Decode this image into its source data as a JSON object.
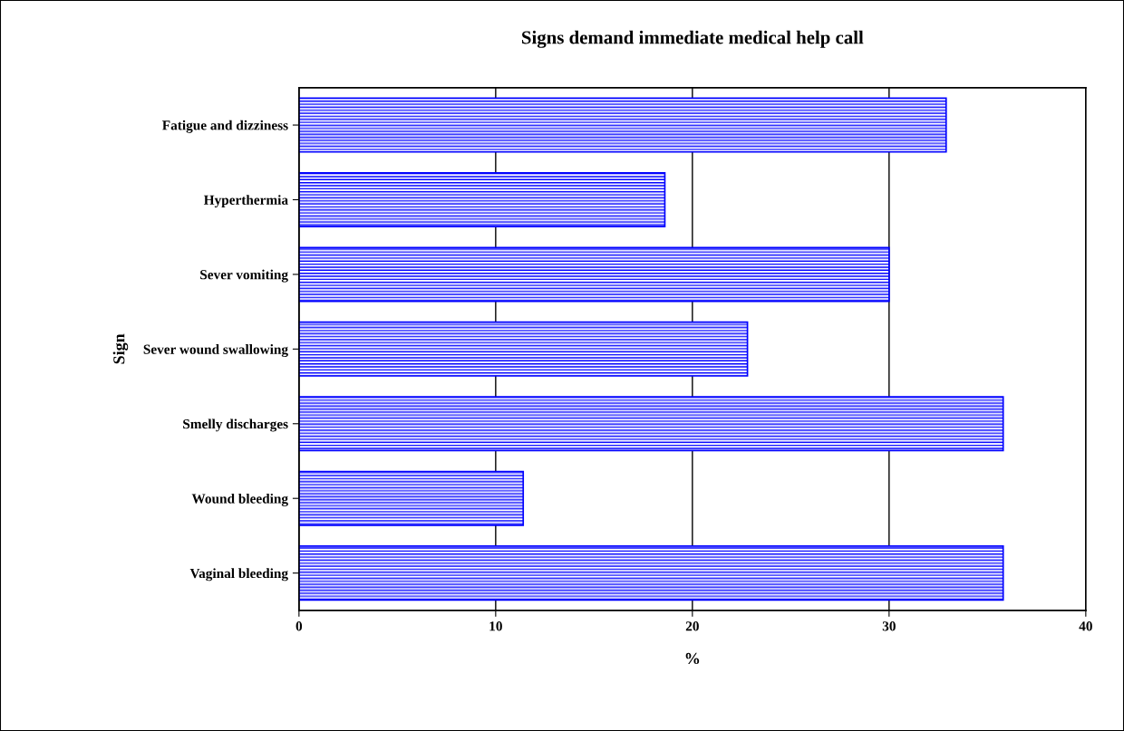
{
  "chart_data": {
    "type": "bar",
    "orientation": "horizontal",
    "title": "Signs demand immediate medical help call",
    "xlabel": "%",
    "ylabel": "Sign",
    "categories": [
      "Fatigue and dizziness",
      "Hyperthermia",
      "Sever vomiting",
      "Sever wound swallowing",
      "Smelly discharges",
      "Wound bleeding",
      "Vaginal bleeding"
    ],
    "values": [
      32.9,
      18.6,
      30.0,
      22.8,
      35.8,
      11.4,
      35.8
    ],
    "color": "#0000ff",
    "xlim": [
      0,
      40
    ],
    "xticks": [
      0,
      10,
      20,
      30,
      40
    ],
    "grid": "x"
  }
}
